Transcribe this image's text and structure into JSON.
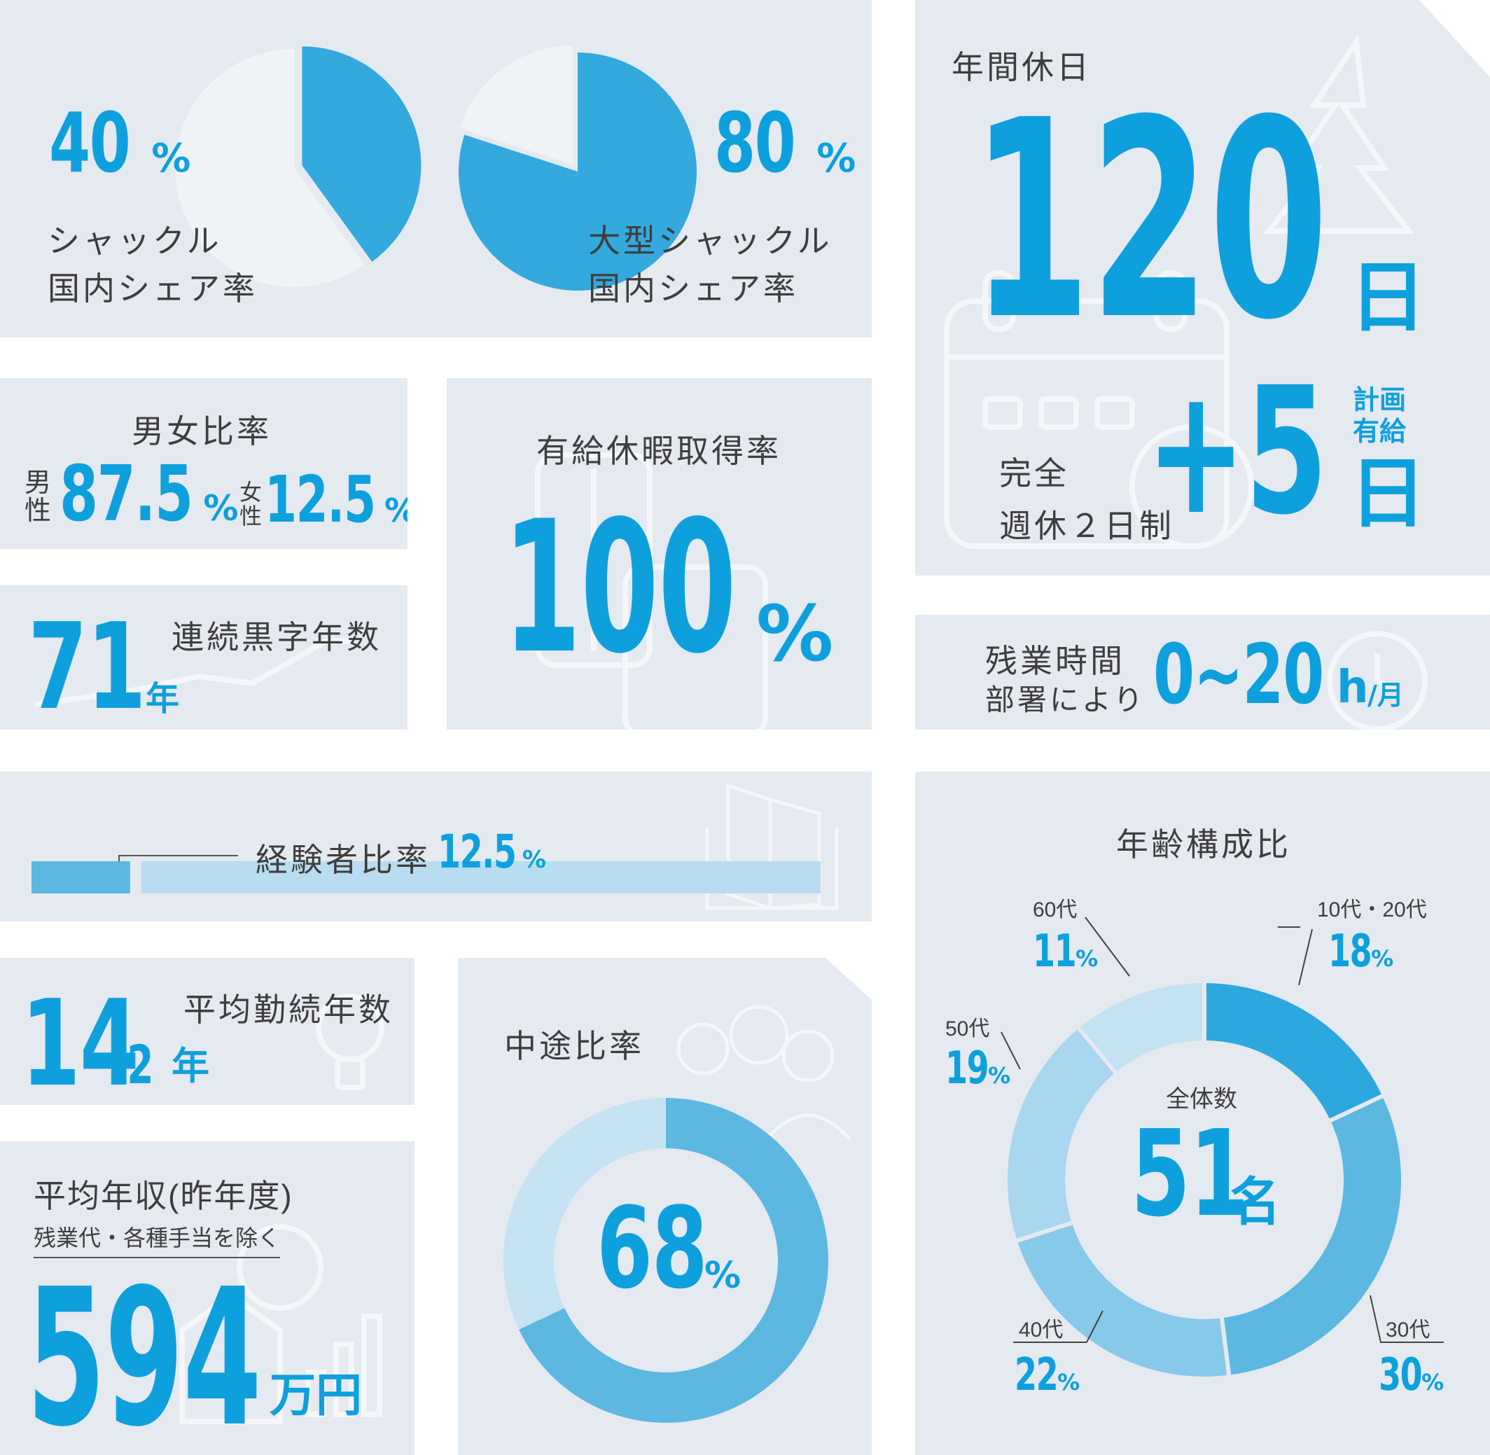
{
  "colors": {
    "accent": "#0ea0dc",
    "panel": "#e5e9f0",
    "light": "#f0f3f6"
  },
  "shackle": {
    "value": "40",
    "unit": "%",
    "label1": "シャックル",
    "label2": "国内シェア率"
  },
  "large_shackle": {
    "value": "80",
    "unit": "%",
    "label1": "大型シャックル",
    "label2": "国内シェア率"
  },
  "holidays": {
    "title": "年間休日",
    "value": "120",
    "unit": "日",
    "plus": "+5",
    "plus_unit": "日",
    "planned1": "計画",
    "planned2": "有給",
    "note1": "完全",
    "note2": "週休２日制"
  },
  "gender": {
    "title": "男女比率",
    "male_label1": "男",
    "male_label2": "性",
    "male_value": "87.5",
    "male_unit": "%",
    "female_label1": "女",
    "female_label2": "性",
    "female_value": "12.5",
    "female_unit": "%"
  },
  "paid_leave": {
    "title": "有給休暇取得率",
    "value": "100",
    "unit": "%"
  },
  "overtime": {
    "title1": "残業時間",
    "title2": "部署により",
    "value": "0~20",
    "unit": "h",
    "per": "/月"
  },
  "black_years": {
    "value": "71",
    "unit": "年",
    "title": "連続黒字年数"
  },
  "experienced": {
    "title": "経験者比率",
    "value": "12.5",
    "unit": "%"
  },
  "tenure": {
    "value_int": "14",
    "value_dec": ".2",
    "unit": "年",
    "title": "平均勤続年数"
  },
  "salary": {
    "title": "平均年収(昨年度)",
    "note": "残業代・各種手当を除く",
    "value": "594",
    "unit": "万円"
  },
  "midcareer": {
    "title": "中途比率",
    "value": "68",
    "unit": "%"
  },
  "age": {
    "title": "年齢構成比",
    "center_label": "全体数",
    "total": "51",
    "total_unit": "名",
    "labels": [
      {
        "name": "10代・20代",
        "pct": "18",
        "unit": "%"
      },
      {
        "name": "30代",
        "pct": "30",
        "unit": "%"
      },
      {
        "name": "40代",
        "pct": "22",
        "unit": "%"
      },
      {
        "name": "50代",
        "pct": "19",
        "unit": "%"
      },
      {
        "name": "60代",
        "pct": "11",
        "unit": "%"
      }
    ]
  },
  "chart_data": [
    {
      "type": "pie",
      "categories": [
        "シャックル 国内シェア率",
        ""
      ],
      "values": [
        40,
        60
      ]
    },
    {
      "type": "pie",
      "categories": [
        "大型シャックル 国内シェア率",
        ""
      ],
      "values": [
        80,
        20
      ]
    },
    {
      "type": "bar",
      "categories": [
        "経験者比率"
      ],
      "values": [
        12.5
      ],
      "ylim": [
        0,
        100
      ]
    },
    {
      "type": "pie",
      "categories": [
        "中途比率",
        ""
      ],
      "values": [
        68,
        32
      ]
    },
    {
      "type": "pie",
      "categories": [
        "10代・20代",
        "30代",
        "40代",
        "50代",
        "60代"
      ],
      "values": [
        18,
        30,
        22,
        19,
        11
      ]
    }
  ]
}
